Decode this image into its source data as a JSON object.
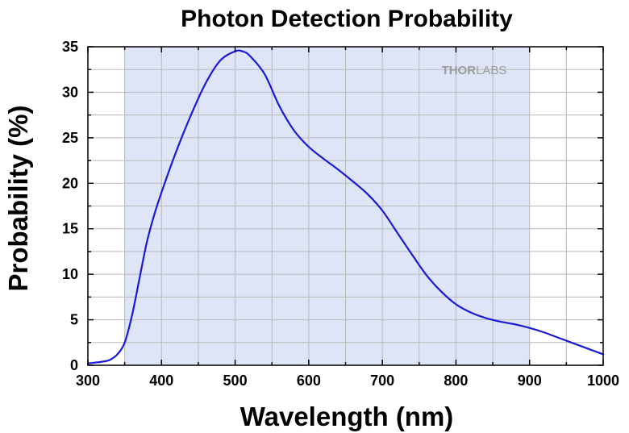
{
  "chart_data": {
    "type": "line",
    "title": "Photon Detection Probability",
    "xlabel": "Wavelength (nm)",
    "ylabel": "Probability (%)",
    "xlim": [
      300,
      1000
    ],
    "ylim": [
      0,
      35
    ],
    "xticks": [
      300,
      400,
      500,
      600,
      700,
      800,
      900,
      1000
    ],
    "yticks": [
      0,
      5,
      10,
      15,
      20,
      25,
      30,
      35
    ],
    "x_minor_step": 50,
    "y_minor_step": 2.5,
    "grid": true,
    "shaded_region": {
      "x_start": 350,
      "x_end": 900
    },
    "watermark": {
      "bold": "THOR",
      "light": "LABS"
    },
    "series": [
      {
        "name": "Photon Detection Probability",
        "color": "#1a1ad6",
        "x": [
          300,
          310,
          320,
          330,
          340,
          350,
          360,
          370,
          380,
          390,
          400,
          420,
          440,
          460,
          480,
          500,
          510,
          520,
          540,
          560,
          580,
          600,
          620,
          640,
          660,
          680,
          700,
          720,
          740,
          760,
          780,
          800,
          820,
          840,
          860,
          880,
          900,
          920,
          940,
          960,
          980,
          1000
        ],
        "y": [
          0.2,
          0.3,
          0.4,
          0.6,
          1.2,
          2.5,
          5.5,
          9.5,
          13.5,
          16.5,
          19.0,
          23.5,
          27.5,
          31.0,
          33.5,
          34.5,
          34.5,
          34.0,
          32.0,
          28.5,
          25.8,
          24.0,
          22.7,
          21.5,
          20.2,
          18.8,
          17.0,
          14.6,
          12.2,
          9.9,
          8.1,
          6.7,
          5.8,
          5.2,
          4.8,
          4.5,
          4.1,
          3.6,
          3.0,
          2.4,
          1.8,
          1.2
        ]
      }
    ]
  }
}
